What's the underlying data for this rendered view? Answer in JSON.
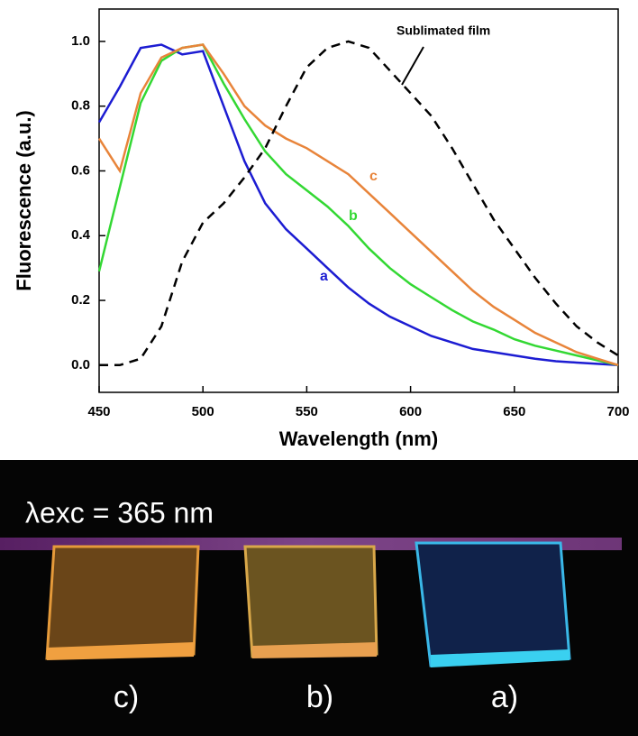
{
  "chart_data": {
    "type": "line",
    "x_label": "Wavelength (nm)",
    "y_label": "Fluorescence (a.u.)",
    "x": [
      450,
      460,
      470,
      480,
      490,
      500,
      510,
      520,
      530,
      540,
      550,
      560,
      570,
      580,
      590,
      600,
      610,
      620,
      630,
      640,
      650,
      660,
      670,
      680,
      690,
      700
    ],
    "series": [
      {
        "name": "a",
        "color": "#1c1cd2",
        "values": [
          0.75,
          0.86,
          0.98,
          0.99,
          0.96,
          0.97,
          0.8,
          0.63,
          0.5,
          0.42,
          0.36,
          0.3,
          0.24,
          0.19,
          0.15,
          0.12,
          0.09,
          0.07,
          0.05,
          0.04,
          0.03,
          0.02,
          0.012,
          0.008,
          0.004,
          0
        ]
      },
      {
        "name": "b",
        "color": "#33d833",
        "values": [
          0.29,
          0.55,
          0.81,
          0.94,
          0.98,
          0.99,
          0.87,
          0.76,
          0.66,
          0.59,
          0.54,
          0.49,
          0.43,
          0.36,
          0.3,
          0.25,
          0.21,
          0.17,
          0.135,
          0.11,
          0.08,
          0.06,
          0.045,
          0.03,
          0.015,
          0
        ]
      },
      {
        "name": "c",
        "color": "#e8843a",
        "values": [
          0.7,
          0.6,
          0.84,
          0.95,
          0.98,
          0.99,
          0.9,
          0.8,
          0.74,
          0.7,
          0.67,
          0.63,
          0.59,
          0.53,
          0.47,
          0.41,
          0.35,
          0.29,
          0.23,
          0.18,
          0.14,
          0.1,
          0.07,
          0.04,
          0.02,
          0
        ]
      },
      {
        "name": "Sublimated film",
        "color": "#000000",
        "dashed": true,
        "values": [
          0,
          0,
          0.02,
          0.12,
          0.32,
          0.44,
          0.5,
          0.58,
          0.67,
          0.8,
          0.92,
          0.98,
          1.0,
          0.98,
          0.91,
          0.84,
          0.77,
          0.67,
          0.56,
          0.45,
          0.36,
          0.27,
          0.19,
          0.12,
          0.07,
          0.03
        ]
      }
    ],
    "xlim": [
      450,
      700
    ],
    "xticks": [
      450,
      500,
      550,
      600,
      650,
      700
    ],
    "ylim": [
      -0.084,
      1.1
    ],
    "yticks": [
      {
        "value": 0,
        "label": "0.0"
      },
      0.2,
      0.4,
      0.6,
      0.8,
      {
        "value": 1,
        "label": "1.0"
      }
    ],
    "grid": false
  },
  "photo": {
    "caption": "λexc = 365 nm",
    "labels": [
      "c)",
      "b)",
      "a)"
    ]
  }
}
